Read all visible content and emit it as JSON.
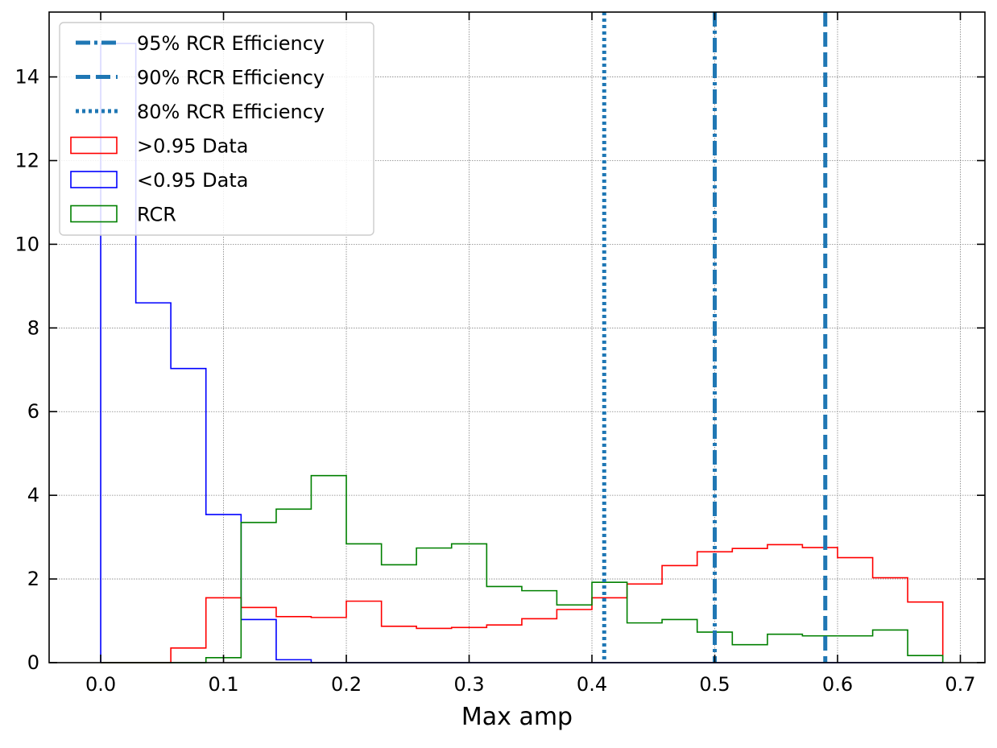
{
  "chart_data": {
    "type": "histogram",
    "xlabel": "Max amp",
    "ylabel": "",
    "xlim": [
      -0.042,
      0.72
    ],
    "ylim": [
      0,
      15.55
    ],
    "grid": true,
    "legend_position": "top-left",
    "x_ticks": [
      "0.0",
      "0.1",
      "0.2",
      "0.3",
      "0.4",
      "0.5",
      "0.6",
      "0.7"
    ],
    "y_ticks": [
      "0",
      "2",
      "4",
      "6",
      "8",
      "10",
      "12",
      "14"
    ],
    "bin_edges": [
      0.0,
      0.0286,
      0.0571,
      0.0857,
      0.1143,
      0.1429,
      0.1714,
      0.2,
      0.2286,
      0.2571,
      0.2857,
      0.3143,
      0.3429,
      0.3714,
      0.4,
      0.4286,
      0.4571,
      0.4857,
      0.5143,
      0.5429,
      0.5714,
      0.6,
      0.6286,
      0.6571,
      0.6857
    ],
    "series": [
      {
        "name": ">0.95 Data",
        "color": "#ff0000",
        "values": [
          0,
          0,
          0.35,
          1.55,
          1.32,
          1.1,
          1.08,
          1.47,
          0.87,
          0.82,
          0.84,
          0.9,
          1.05,
          1.27,
          1.55,
          1.88,
          2.32,
          2.65,
          2.73,
          2.82,
          2.75,
          2.51,
          2.03,
          1.45
        ]
      },
      {
        "name": "<0.95 Data",
        "color": "#0000ff",
        "values": [
          14.8,
          8.6,
          7.03,
          3.54,
          1.03,
          0.07,
          0,
          0,
          0,
          0,
          0,
          0,
          0,
          0,
          0,
          0,
          0,
          0,
          0,
          0,
          0,
          0,
          0,
          0
        ]
      },
      {
        "name": "RCR",
        "color": "#008000",
        "values": [
          0,
          0,
          0,
          0.12,
          3.35,
          3.67,
          4.47,
          2.84,
          2.34,
          2.74,
          2.84,
          1.82,
          1.72,
          1.38,
          1.92,
          0.95,
          1.03,
          0.73,
          0.43,
          0.68,
          0.64,
          0.64,
          0.78,
          0.17
        ]
      }
    ],
    "vlines": [
      {
        "name": "95% RCR Efficiency",
        "x": 0.5,
        "style": "dashdot",
        "color": "#1f77b4"
      },
      {
        "name": "90% RCR Efficiency",
        "x": 0.59,
        "style": "dashed",
        "color": "#1f77b4"
      },
      {
        "name": "80% RCR Efficiency",
        "x": 0.41,
        "style": "dotted",
        "color": "#1f77b4"
      }
    ],
    "legend_order": [
      {
        "kind": "line",
        "name": "95% RCR Efficiency",
        "style": "dashdot"
      },
      {
        "kind": "line",
        "name": "90% RCR Efficiency",
        "style": "dashed"
      },
      {
        "kind": "line",
        "name": "80% RCR Efficiency",
        "style": "dotted"
      },
      {
        "kind": "patch",
        "name": ">0.95 Data",
        "color": "#ff0000"
      },
      {
        "kind": "patch",
        "name": "<0.95 Data",
        "color": "#0000ff"
      },
      {
        "kind": "patch",
        "name": "RCR",
        "color": "#008000"
      }
    ]
  }
}
